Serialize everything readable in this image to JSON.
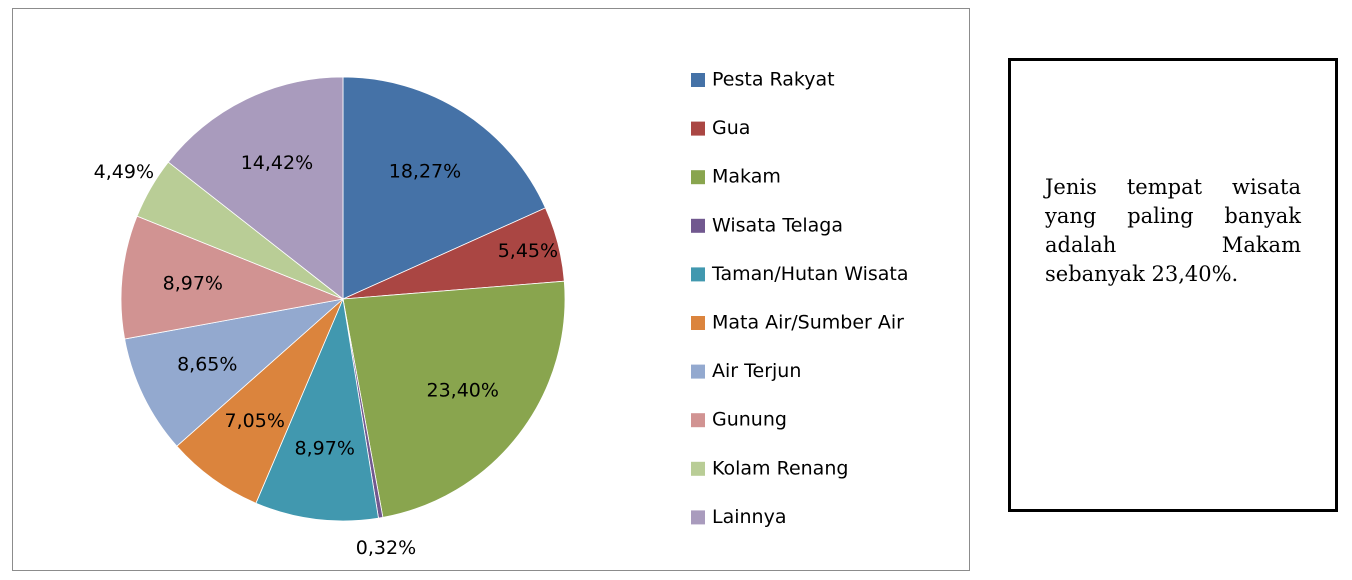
{
  "chart_data": {
    "type": "pie",
    "categories": [
      "Pesta Rakyat",
      "Gua",
      "Makam",
      "Wisata Telaga",
      "Taman/Hutan Wisata",
      "Mata Air/Sumber Air",
      "Air Terjun",
      "Gunung",
      "Kolam Renang",
      "Lainnya"
    ],
    "values": [
      18.27,
      5.45,
      23.4,
      0.32,
      8.97,
      7.05,
      8.65,
      8.97,
      4.49,
      14.42
    ],
    "value_labels": [
      "18,27%",
      "5,45%",
      "23,40%",
      "0,32%",
      "8,97%",
      "7,05%",
      "8,65%",
      "8,97%",
      "4,49%",
      "14,42%"
    ],
    "colors": [
      "#4572A7",
      "#AA4643",
      "#89A54E",
      "#71588F",
      "#4198AF",
      "#DB843D",
      "#93A9CF",
      "#D19392",
      "#B9CD96",
      "#A99BBD"
    ],
    "legend": "right"
  },
  "note": "Jenis tempat wisata yang paling banyak adalah Makam sebanyak 23,40%."
}
